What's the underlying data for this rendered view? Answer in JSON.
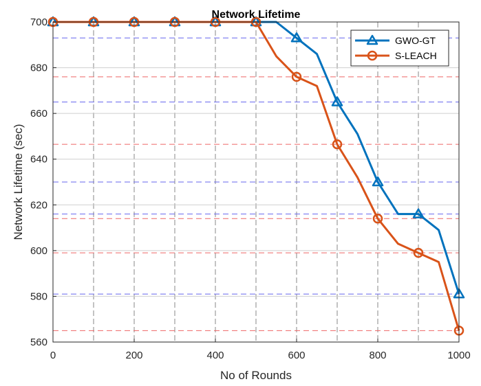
{
  "chart_data": {
    "type": "line",
    "title": "Network Lifetime",
    "xlabel": "No of Rounds",
    "ylabel": "Network Lifetime (sec)",
    "xlim": [
      0,
      1000
    ],
    "ylim": [
      560,
      700
    ],
    "xticks": [
      0,
      200,
      400,
      600,
      800,
      1000
    ],
    "yticks": [
      560,
      580,
      600,
      620,
      640,
      660,
      680,
      700
    ],
    "x_gridlines": [
      0,
      100,
      200,
      300,
      400,
      500,
      600,
      700,
      800,
      900,
      1000
    ],
    "y_gridlines": [
      560,
      580,
      600,
      620,
      640,
      660,
      680,
      700
    ],
    "grid": true,
    "legend_position": "top-right",
    "series": [
      {
        "name": "GWO-GT",
        "color": "#0072BD",
        "marker": "triangle",
        "x": [
          0,
          50,
          100,
          150,
          200,
          250,
          300,
          350,
          400,
          450,
          500,
          550,
          600,
          650,
          700,
          750,
          800,
          850,
          900,
          950,
          1000
        ],
        "y": [
          700,
          700,
          700,
          700,
          700,
          700,
          700,
          700,
          700,
          700,
          700,
          700,
          693,
          686,
          665,
          651,
          630,
          616,
          616,
          609,
          581
        ],
        "marker_x": [
          0,
          100,
          200,
          300,
          400,
          500,
          600,
          700,
          800,
          900,
          1000
        ]
      },
      {
        "name": "S-LEACH",
        "color": "#D95319",
        "marker": "circle",
        "x": [
          0,
          50,
          100,
          150,
          200,
          250,
          300,
          350,
          400,
          450,
          500,
          550,
          600,
          650,
          700,
          750,
          800,
          850,
          900,
          950,
          1000
        ],
        "y": [
          700,
          700,
          700,
          700,
          700,
          700,
          700,
          700,
          700,
          700,
          700,
          685,
          676,
          672,
          646.5,
          632,
          614,
          603,
          599,
          595,
          565
        ],
        "marker_x": [
          0,
          100,
          200,
          300,
          400,
          500,
          600,
          700,
          800,
          900,
          1000
        ]
      }
    ],
    "reference_lines": [
      {
        "color": "#6666ee",
        "values": [
          693,
          665,
          630,
          616,
          581
        ]
      },
      {
        "color": "#ee6666",
        "values": [
          676,
          646.5,
          614,
          599,
          565
        ]
      }
    ]
  }
}
